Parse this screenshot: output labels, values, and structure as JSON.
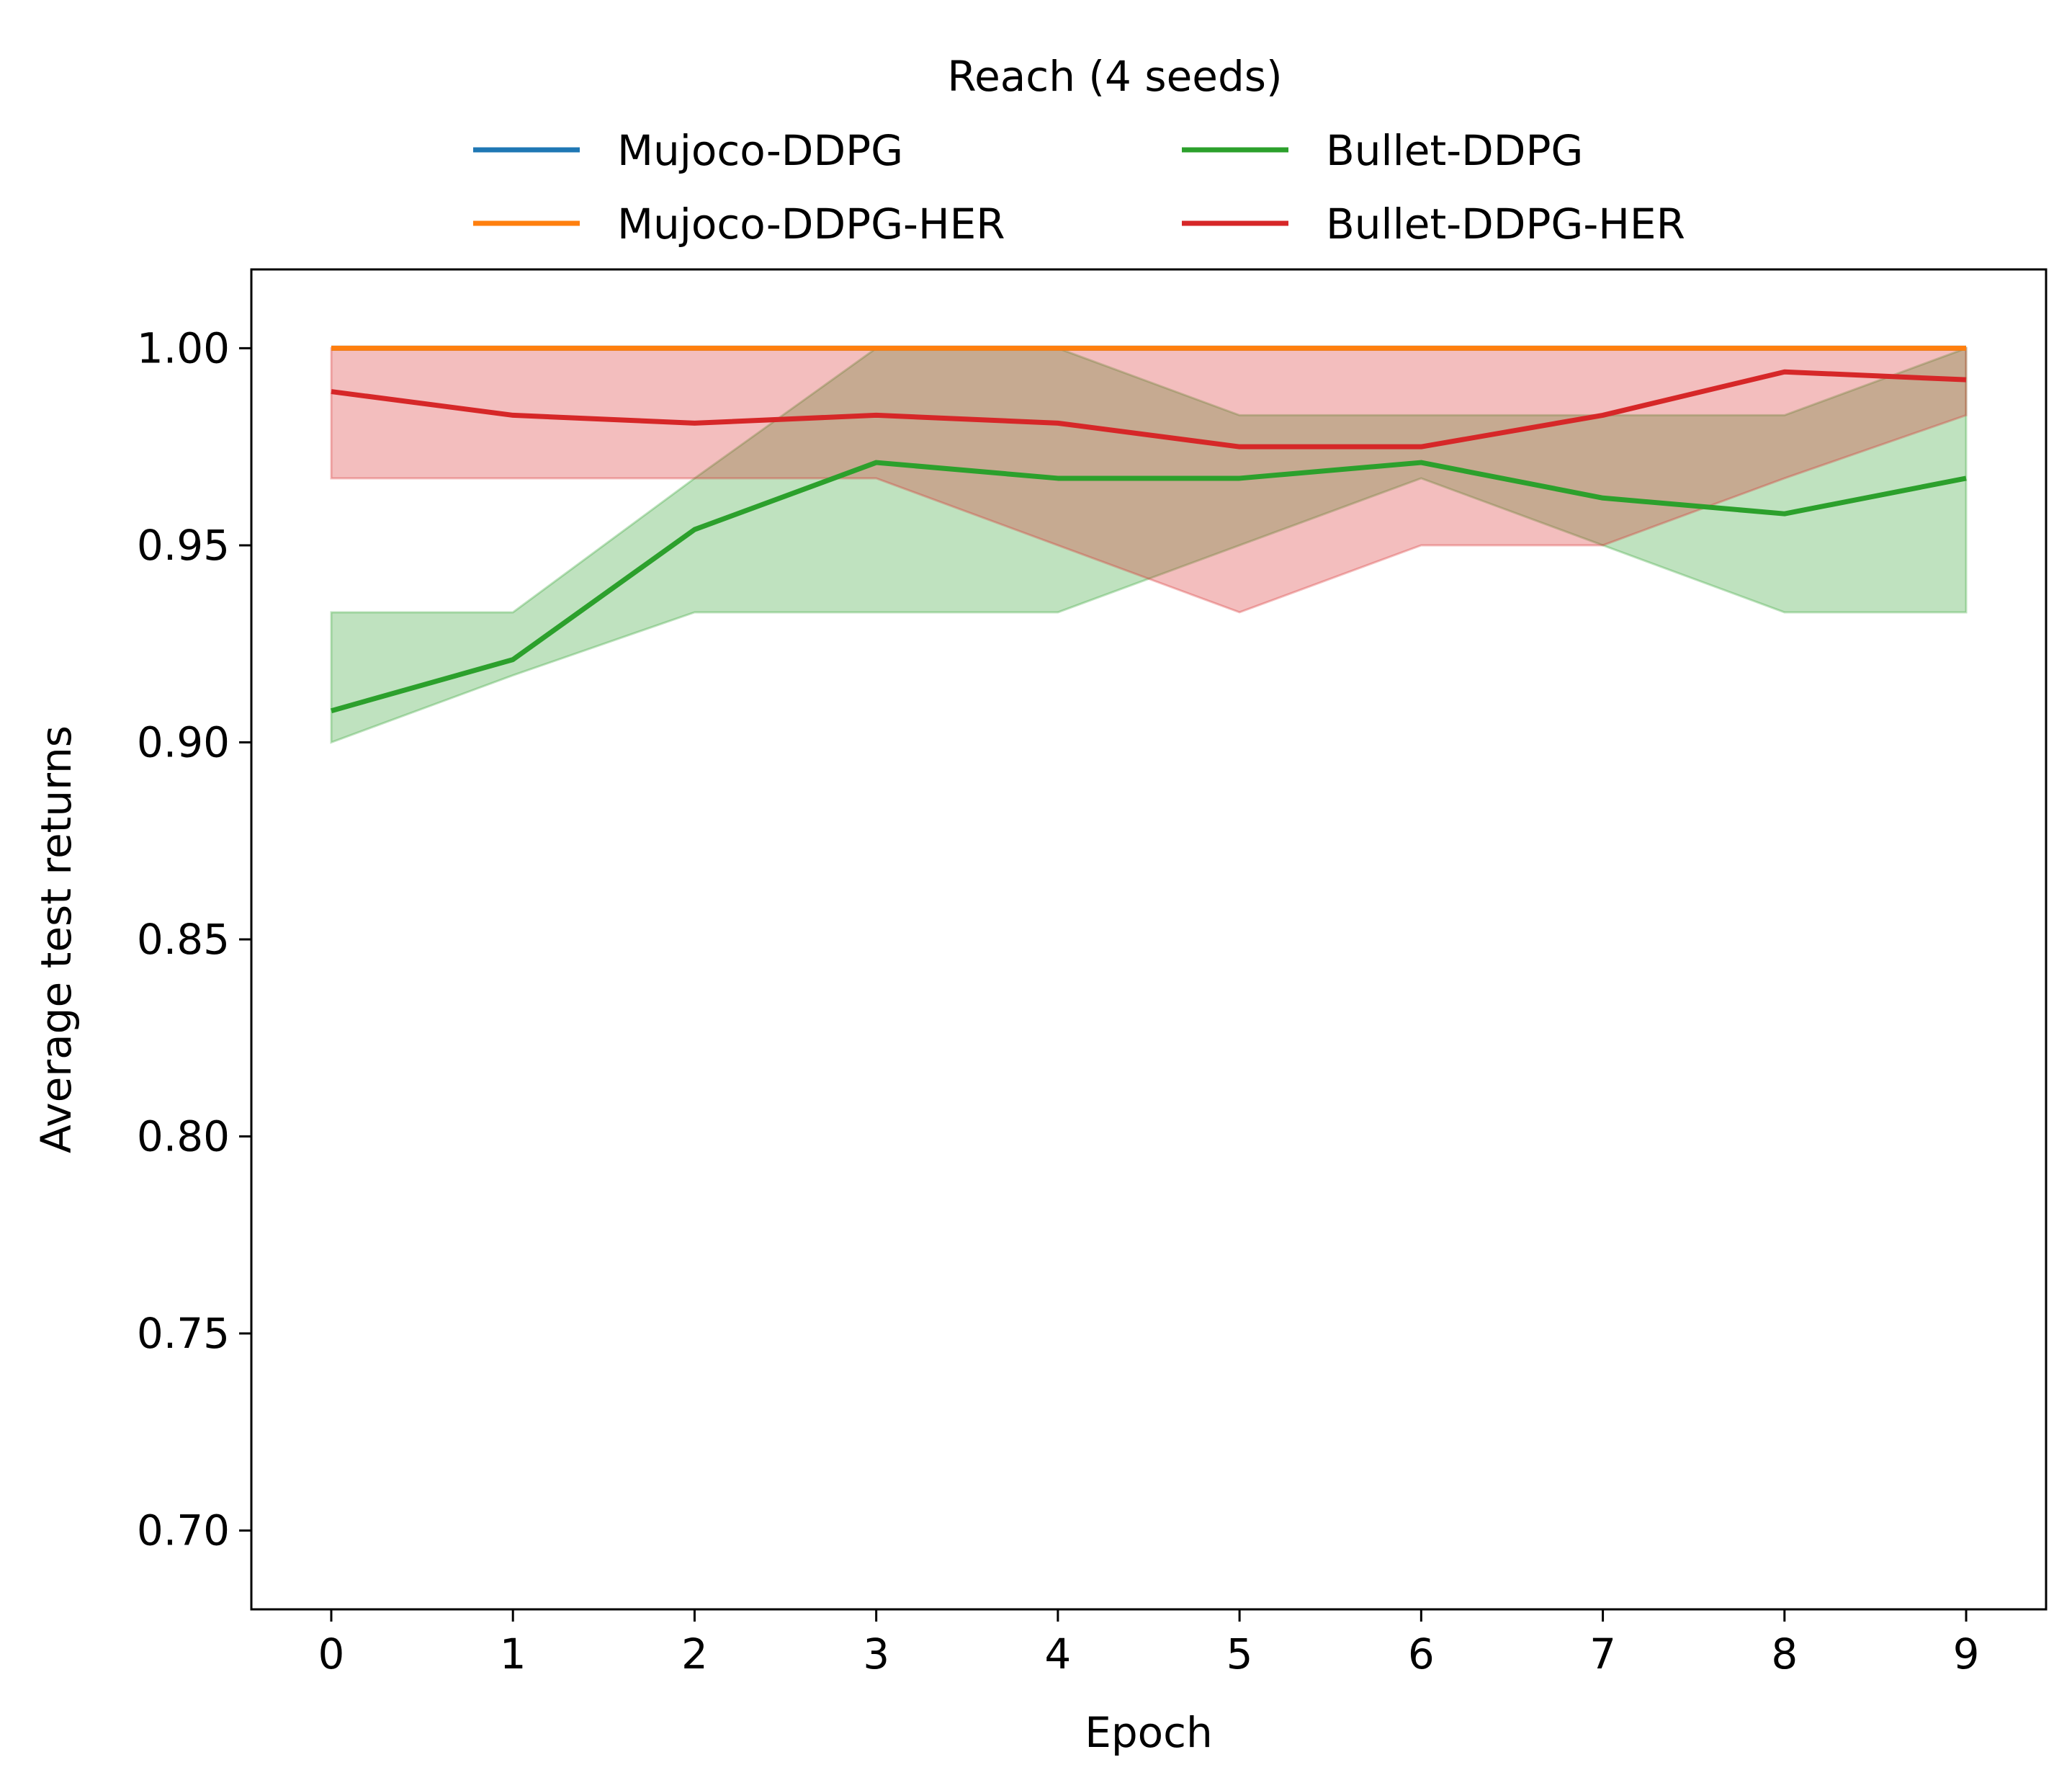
{
  "chart_data": {
    "type": "line",
    "legend_title": "Reach (4 seeds)",
    "legend_placement": "top-center",
    "xlabel": "Epoch",
    "ylabel": "Average test returns",
    "xlim": [
      -0.44,
      9.44
    ],
    "ylim": [
      0.68,
      1.02
    ],
    "x": [
      0,
      1,
      2,
      3,
      4,
      5,
      6,
      7,
      8,
      9
    ],
    "xticks": [
      "0",
      "1",
      "2",
      "3",
      "4",
      "5",
      "6",
      "7",
      "8",
      "9"
    ],
    "yticks": [
      {
        "value": 0.7,
        "label": "0.70"
      },
      {
        "value": 0.75,
        "label": "0.75"
      },
      {
        "value": 0.8,
        "label": "0.80"
      },
      {
        "value": 0.85,
        "label": "0.85"
      },
      {
        "value": 0.9,
        "label": "0.90"
      },
      {
        "value": 0.95,
        "label": "0.95"
      },
      {
        "value": 1.0,
        "label": "1.00"
      }
    ],
    "grid": false,
    "series": [
      {
        "name": "Mujoco-DDPG",
        "color": "#1f77b4",
        "values": [
          1,
          1,
          1,
          1,
          1,
          1,
          1,
          1,
          1,
          1
        ],
        "lower": [
          1,
          1,
          1,
          1,
          1,
          1,
          1,
          1,
          1,
          1
        ],
        "upper": [
          1,
          1,
          1,
          1,
          1,
          1,
          1,
          1,
          1,
          1
        ]
      },
      {
        "name": "Mujoco-DDPG-HER",
        "color": "#ff7f0e",
        "values": [
          1,
          1,
          1,
          1,
          1,
          1,
          1,
          1,
          1,
          1
        ],
        "lower": [
          1,
          1,
          1,
          1,
          1,
          1,
          1,
          1,
          1,
          1
        ],
        "upper": [
          1,
          1,
          1,
          1,
          1,
          1,
          1,
          1,
          1,
          1
        ]
      },
      {
        "name": "Bullet-DDPG",
        "color": "#2ca02c",
        "values": [
          0.908,
          0.921,
          0.954,
          0.971,
          0.967,
          0.967,
          0.971,
          0.962,
          0.958,
          0.967
        ],
        "lower": [
          0.9,
          0.917,
          0.933,
          0.933,
          0.933,
          0.95,
          0.967,
          0.95,
          0.933,
          0.933
        ],
        "upper": [
          0.933,
          0.933,
          0.967,
          1.0,
          1.0,
          0.983,
          0.983,
          0.983,
          0.983,
          1.0
        ]
      },
      {
        "name": "Bullet-DDPG-HER",
        "color": "#d62728",
        "values": [
          0.989,
          0.983,
          0.981,
          0.983,
          0.981,
          0.975,
          0.975,
          0.983,
          0.994,
          0.992
        ],
        "lower": [
          0.967,
          0.967,
          0.967,
          0.967,
          0.95,
          0.933,
          0.95,
          0.95,
          0.967,
          0.983
        ],
        "upper": [
          1.0,
          1.0,
          1.0,
          1.0,
          1.0,
          1.0,
          1.0,
          1.0,
          1.0,
          1.0
        ]
      }
    ]
  }
}
